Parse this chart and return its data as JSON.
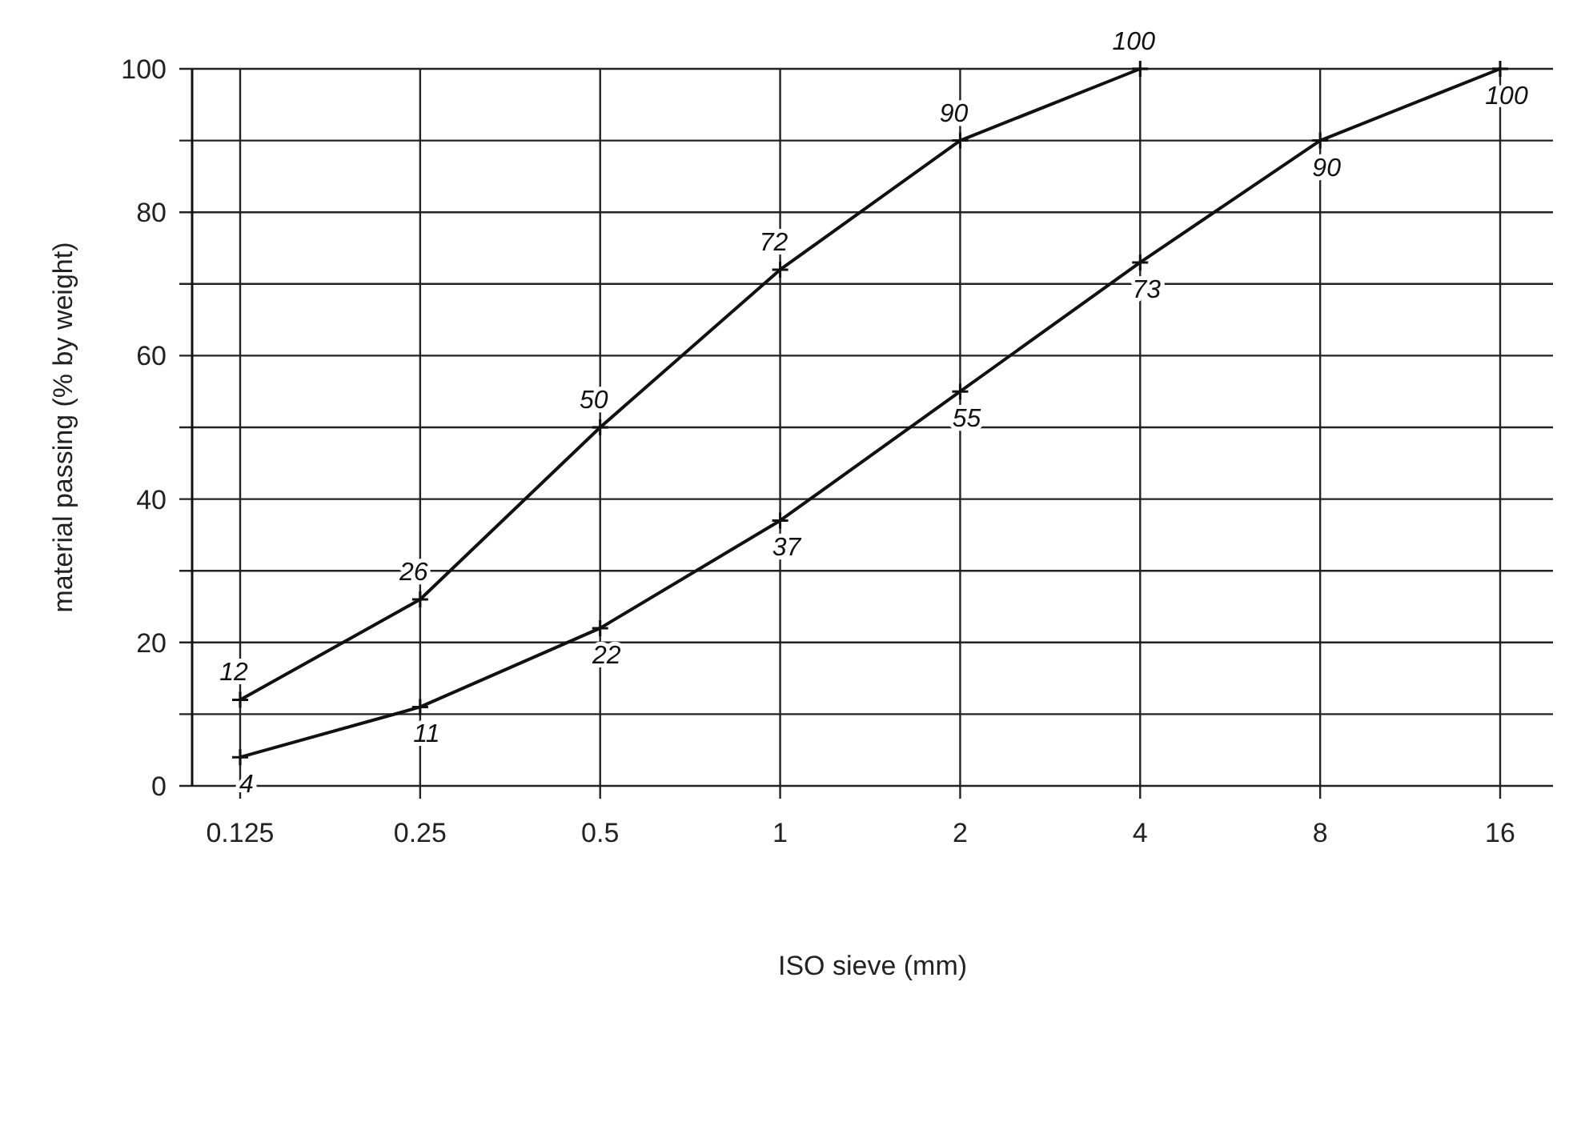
{
  "chart_data": {
    "type": "line",
    "xlabel": "ISO sieve (mm)",
    "ylabel": "material passing (% by weight)",
    "categories": [
      "0.125",
      "0.25",
      "0.5",
      "1",
      "2",
      "4",
      "8",
      "16"
    ],
    "series": [
      {
        "color": "#111111",
        "values": [
          12,
          26,
          50,
          72,
          90,
          100,
          null,
          null
        ],
        "value_labels": [
          "12",
          "26",
          "50",
          "72",
          "90",
          "100",
          null,
          null
        ]
      },
      {
        "color": "#111111",
        "values": [
          4,
          11,
          22,
          37,
          55,
          73,
          90,
          100
        ],
        "value_labels": [
          "4",
          "11",
          "22",
          "37",
          "55",
          "73",
          "90",
          "100"
        ]
      }
    ],
    "ylim": [
      0,
      100
    ],
    "yticks": [
      0,
      {
        "value": 10,
        "label": null
      },
      20,
      {
        "value": 30,
        "label": null
      },
      40,
      {
        "value": 50,
        "label": null
      },
      60,
      {
        "value": 70,
        "label": null
      },
      80,
      {
        "value": 90,
        "label": null
      },
      100
    ],
    "grid": true,
    "marker": "cross",
    "line_style": "solid"
  }
}
